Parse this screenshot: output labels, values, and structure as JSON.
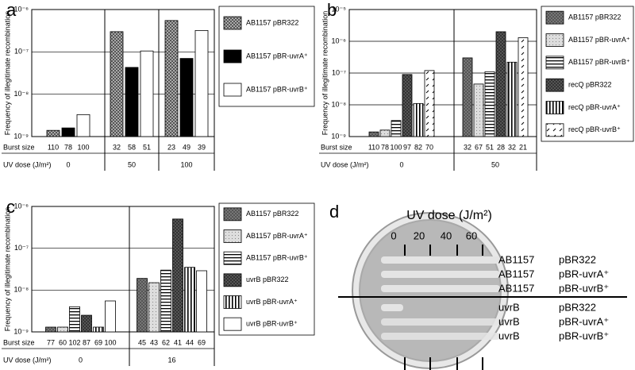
{
  "chart_data": [
    {
      "type": "bar",
      "panel": "a",
      "log_y": true,
      "grid": true,
      "ylabel": "Frequency of illegitimate recombination",
      "xlabel": "UV dose (J/m²)",
      "row_label": "Burst size",
      "ylim": [
        1e-09,
        1e-06
      ],
      "yticks": [
        {
          "value": 1e-09,
          "label": "10⁻⁹"
        },
        {
          "value": 1e-08,
          "label": "10⁻⁸"
        },
        {
          "value": 1e-07,
          "label": "10⁻⁷"
        },
        {
          "value": 1e-06,
          "label": "10⁻⁶"
        }
      ],
      "categories": [
        "0",
        "50",
        "100"
      ],
      "series": [
        {
          "name": "AB1157 pBR322",
          "color": "#aaaaaa",
          "pattern": "checker",
          "values": [
            1.4e-09,
            3e-07,
            5.5e-07
          ],
          "burst_size": [
            110,
            32,
            23
          ]
        },
        {
          "name": "AB1157 pBR-uvrA⁺",
          "color": "#000000",
          "pattern": "solid",
          "values": [
            1.6e-09,
            4.3e-08,
            7e-08
          ],
          "burst_size": [
            78,
            58,
            49
          ]
        },
        {
          "name": "AB1157 pBR-uvrB⁺",
          "color": "#ffffff",
          "pattern": "solid",
          "values": [
            3.3e-09,
            1.05e-07,
            3.2e-07
          ],
          "burst_size": [
            100,
            51,
            39
          ]
        }
      ]
    },
    {
      "type": "bar",
      "panel": "b",
      "log_y": true,
      "grid": true,
      "ylabel": "Frequency of illegitimate recombination",
      "xlabel": "UV dose (J/m²)",
      "row_label": "Burst size",
      "ylim": [
        1e-09,
        1e-05
      ],
      "yticks": [
        {
          "value": 1e-09,
          "label": "10⁻⁹"
        },
        {
          "value": 1e-08,
          "label": "10⁻⁸"
        },
        {
          "value": 1e-07,
          "label": "10⁻⁷"
        },
        {
          "value": 1e-06,
          "label": "10⁻⁶"
        },
        {
          "value": 1e-05,
          "label": "10⁻⁵"
        }
      ],
      "categories": [
        "0",
        "50"
      ],
      "series": [
        {
          "name": "AB1157 pBR322",
          "color": "#777777",
          "pattern": "checker",
          "values": [
            1.4e-09,
            3e-07
          ],
          "burst_size": [
            110,
            32
          ]
        },
        {
          "name": "AB1157 pBR-uvrA⁺",
          "color": "#dddddd",
          "pattern": "dots",
          "values": [
            1.6e-09,
            4.5e-08
          ],
          "burst_size": [
            78,
            67
          ]
        },
        {
          "name": "AB1157 pBR-uvrB⁺",
          "color": "#ffffff",
          "pattern": "hstripes",
          "values": [
            3.2e-09,
            1.1e-07
          ],
          "burst_size": [
            100,
            51
          ]
        },
        {
          "name": "recQ pBR322",
          "color": "#333333",
          "pattern": "checker",
          "values": [
            9e-08,
            2e-06
          ],
          "burst_size": [
            97,
            28
          ]
        },
        {
          "name": "recQ pBR-uvrA⁺",
          "color": "#ffffff",
          "pattern": "vstripes",
          "values": [
            1.1e-08,
            2.2e-07
          ],
          "burst_size": [
            82,
            32
          ]
        },
        {
          "name": "recQ pBR-uvrB⁺",
          "color": "#ffffff",
          "pattern": "dashes",
          "values": [
            1.2e-07,
            1.3e-06
          ],
          "burst_size": [
            70,
            21
          ]
        }
      ]
    },
    {
      "type": "bar",
      "panel": "c",
      "log_y": true,
      "grid": true,
      "ylabel": "Frequency of illegitimate recombination",
      "xlabel": "UV dose (J/m²)",
      "row_label": "Burst size",
      "ylim": [
        1e-09,
        1e-06
      ],
      "yticks": [
        {
          "value": 1e-09,
          "label": "10⁻⁹"
        },
        {
          "value": 1e-08,
          "label": "10⁻⁸"
        },
        {
          "value": 1e-07,
          "label": "10⁻⁷"
        },
        {
          "value": 1e-06,
          "label": "10⁻⁶"
        }
      ],
      "categories": [
        "0",
        "16"
      ],
      "series": [
        {
          "name": "AB1157 pBR322",
          "color": "#777777",
          "pattern": "checker",
          "values": [
            1.3e-09,
            1.9e-08
          ],
          "burst_size": [
            77,
            45
          ]
        },
        {
          "name": "AB1157 pBR-uvrA⁺",
          "color": "#dddddd",
          "pattern": "dots",
          "values": [
            1.3e-09,
            1.5e-08
          ],
          "burst_size": [
            60,
            43
          ]
        },
        {
          "name": "AB1157 pBR-uvrB⁺",
          "color": "#ffffff",
          "pattern": "hstripes",
          "values": [
            4e-09,
            3e-08
          ],
          "burst_size": [
            102,
            62
          ]
        },
        {
          "name": "uvrB pBR322",
          "color": "#333333",
          "pattern": "checker",
          "values": [
            2.5e-09,
            5e-07
          ],
          "burst_size": [
            87,
            41
          ]
        },
        {
          "name": "uvrB pBR-uvrA⁺",
          "color": "#ffffff",
          "pattern": "vstripes",
          "values": [
            1.3e-09,
            3.5e-08
          ],
          "burst_size": [
            69,
            44
          ]
        },
        {
          "name": "uvrB pBR-uvrB⁺",
          "color": "#ffffff",
          "pattern": "solid",
          "values": [
            5.5e-09,
            2.9e-08
          ],
          "burst_size": [
            100,
            69
          ]
        }
      ]
    }
  ],
  "plate": {
    "panel": "d",
    "title": "UV dose (J/m²)",
    "doses": [
      "0",
      "20",
      "40",
      "60"
    ],
    "rows": [
      {
        "strain": "AB1157",
        "plasmid": "pBR322"
      },
      {
        "strain": "AB1157",
        "plasmid": "pBR-uvrA⁺"
      },
      {
        "strain": "AB1157",
        "plasmid": "pBR-uvrB⁺"
      },
      {
        "strain": "uvrB",
        "plasmid": "pBR322"
      },
      {
        "strain": "uvrB",
        "plasmid": "pBR-uvrA⁺"
      },
      {
        "strain": "uvrB",
        "plasmid": "pBR-uvrB⁺"
      }
    ]
  }
}
